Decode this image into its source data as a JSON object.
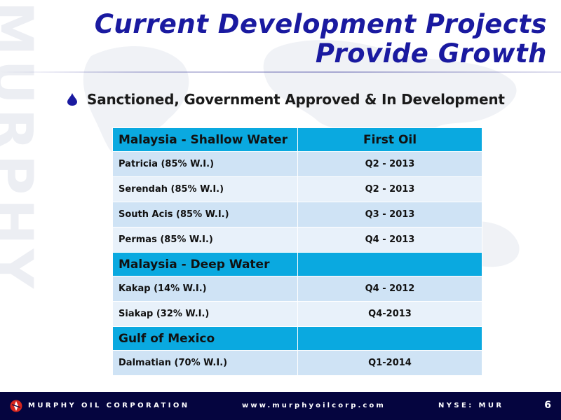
{
  "watermark": "MURPHY",
  "title": {
    "line1": "Current Development Projects",
    "line2": "Provide Growth"
  },
  "bullet": "Sanctioned, Government Approved & In Development",
  "table": {
    "sections": [
      {
        "header": "Malaysia - Shallow Water",
        "header_right": "First Oil",
        "rows": [
          {
            "project": "Patricia (85% W.I.)",
            "first_oil": "Q2 - 2013"
          },
          {
            "project": "Serendah (85% W.I.)",
            "first_oil": "Q2 - 2013"
          },
          {
            "project": "South Acis (85% W.I.)",
            "first_oil": "Q3 - 2013"
          },
          {
            "project": "Permas (85% W.I.)",
            "first_oil": "Q4 - 2013"
          }
        ]
      },
      {
        "header": "Malaysia - Deep Water",
        "header_right": "",
        "rows": [
          {
            "project": "Kakap (14% W.I.)",
            "first_oil": "Q4 - 2012"
          },
          {
            "project": "Siakap (32% W.I.)",
            "first_oil": "Q4-2013"
          }
        ]
      },
      {
        "header": "Gulf of Mexico",
        "header_right": "",
        "rows": [
          {
            "project": "Dalmatian (70% W.I.)",
            "first_oil": "Q1-2014"
          }
        ]
      }
    ]
  },
  "footer": {
    "company": "MURPHY OIL CORPORATION",
    "url": "www.murphyoilcorp.com",
    "ticker": "NYSE: MUR",
    "page": "6"
  },
  "colors": {
    "title": "#1a1aa0",
    "header_band": "#0aa9e0",
    "row_odd": "#cfe3f5",
    "row_even": "#e8f1fa",
    "footer_bg": "#05053f",
    "logo_red": "#d7261e"
  }
}
